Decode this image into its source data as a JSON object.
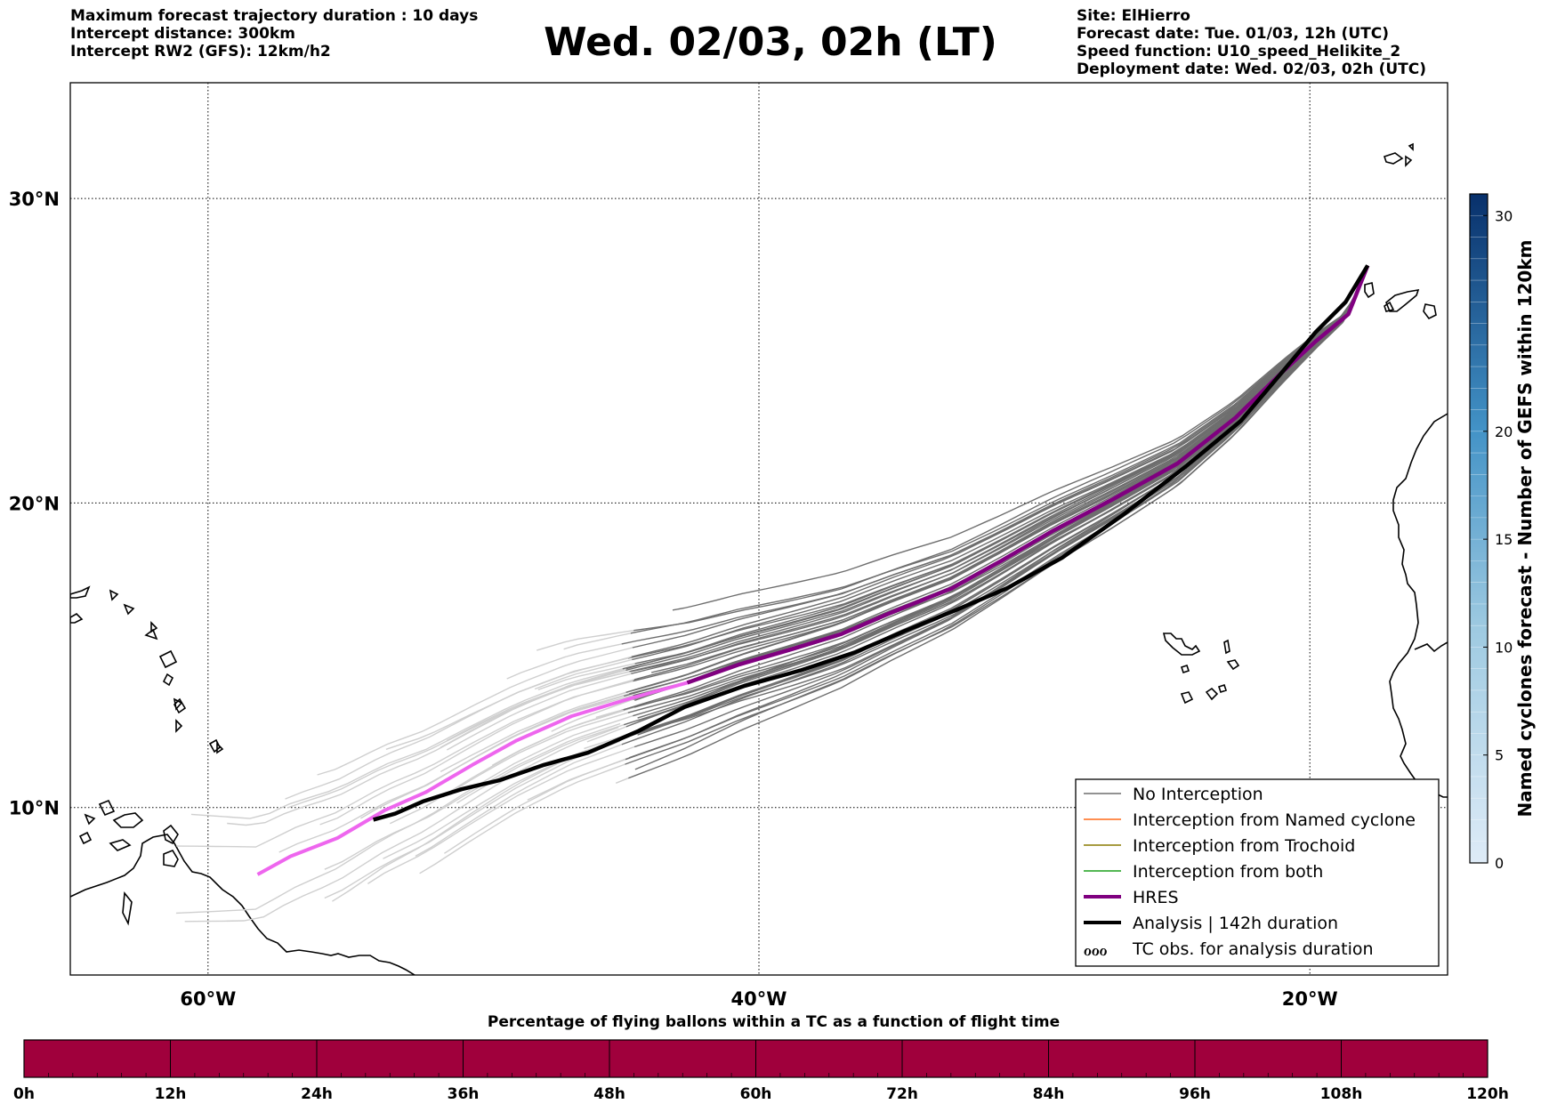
{
  "header": {
    "left_lines": [
      "Maximum forecast trajectory duration : 10 days",
      "Intercept distance: 300km",
      "Intercept RW2 (GFS):  12km/h2"
    ],
    "title": "Wed. 02/03, 02h (LT)",
    "right_lines": [
      "Site: ElHierro",
      "Forecast date: Tue. 01/03, 12h (UTC)",
      "Speed function: U10_speed_Helikite_2",
      "Deployment date: Wed. 02/03, 02h (UTC)"
    ]
  },
  "map": {
    "lon_range": [
      -65,
      -15
    ],
    "lat_range": [
      4.5,
      33.8
    ],
    "lon_ticks": [
      {
        "lon": -60,
        "label": "60°W"
      },
      {
        "lon": -40,
        "label": "40°W"
      },
      {
        "lon": -20,
        "label": "20°W"
      }
    ],
    "lat_ticks": [
      {
        "lat": 30,
        "label": "30°N"
      },
      {
        "lat": 20,
        "label": "20°N"
      },
      {
        "lat": 10,
        "label": "10°N"
      }
    ],
    "colors": {
      "no_interception": "#6e6e6e",
      "no_interception_light": "#cfcfcf",
      "named_cyclone": "#ff6a1a",
      "trochoid": "#8a7a00",
      "both": "#1aa01a",
      "hres": "#800080",
      "hres_light": "#ee66ee",
      "analysis": "#000000"
    }
  },
  "legend": {
    "items": [
      {
        "label": "No Interception",
        "color": "#6e6e6e",
        "width": 1.5,
        "kind": "line"
      },
      {
        "label": "Interception from Named cyclone",
        "color": "#ff6a1a",
        "width": 1.5,
        "kind": "line"
      },
      {
        "label": "Interception from Trochoid",
        "color": "#8a7a00",
        "width": 1.5,
        "kind": "line"
      },
      {
        "label": "Interception from both",
        "color": "#1aa01a",
        "width": 1.5,
        "kind": "line"
      },
      {
        "label": "HRES",
        "color": "#800080",
        "width": 4,
        "kind": "line"
      },
      {
        "label": "Analysis | 142h duration",
        "color": "#000000",
        "width": 4,
        "kind": "line"
      },
      {
        "label": "TC obs. for analysis duration",
        "color": "#000000",
        "width": 2,
        "kind": "symbol",
        "symbol": "ℴℴℴ"
      }
    ]
  },
  "colorbar": {
    "title": "Named cyclones forecast - Number of GEFS within 120km",
    "range": [
      0,
      31
    ],
    "ticks": [
      0,
      5,
      10,
      15,
      20,
      30
    ]
  },
  "hbar": {
    "title": "Percentage of flying ballons within a TC as a function of flight time",
    "color": "#a0003c",
    "ticks": [
      "0h",
      "12h",
      "24h",
      "36h",
      "48h",
      "60h",
      "72h",
      "84h",
      "96h",
      "108h",
      "120h"
    ]
  },
  "chart_data": {
    "type": "line",
    "xlabel": "",
    "ylabel": "",
    "xlim": [
      -65,
      -15
    ],
    "ylim": [
      4.5,
      33.8
    ],
    "series": [
      {
        "name": "HRES",
        "x": [
          -17.9,
          -18.6,
          -19.8,
          -21.0,
          -22.7,
          -24.8,
          -27.2,
          -29.3,
          -31.2,
          -33.0,
          -35.2,
          -37.0,
          -38.8,
          -40.7,
          -42.6,
          -44.6,
          -46.8,
          -48.8,
          -50.4,
          -52.1,
          -53.6,
          -55.3,
          -57.0,
          -58.2
        ],
        "y": [
          27.8,
          26.2,
          25.3,
          24.3,
          22.8,
          21.3,
          20.1,
          19.1,
          18.1,
          17.2,
          16.4,
          15.7,
          15.2,
          14.7,
          14.1,
          13.6,
          13.0,
          12.2,
          11.4,
          10.5,
          9.9,
          9.0,
          8.4,
          7.8
        ]
      },
      {
        "name": "Analysis | 142h duration",
        "x": [
          -17.9,
          -18.7,
          -19.8,
          -21.0,
          -22.5,
          -24.5,
          -26.8,
          -29.0,
          -31.0,
          -32.8,
          -34.7,
          -36.5,
          -38.5,
          -40.5,
          -42.7,
          -44.4,
          -46.2,
          -47.8,
          -49.4,
          -50.8,
          -52.2,
          -53.2,
          -54.0
        ],
        "y": [
          27.8,
          26.6,
          25.6,
          24.3,
          22.7,
          21.2,
          19.6,
          18.2,
          17.2,
          16.5,
          15.8,
          15.1,
          14.5,
          14.0,
          13.3,
          12.5,
          11.8,
          11.4,
          10.9,
          10.6,
          10.2,
          9.8,
          9.6
        ]
      }
    ]
  }
}
